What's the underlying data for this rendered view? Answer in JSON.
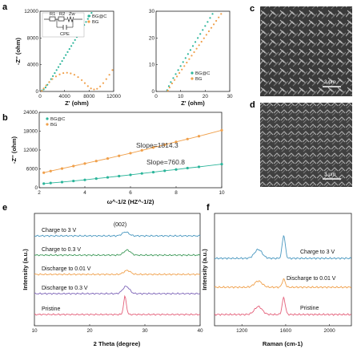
{
  "panels": {
    "a": "a",
    "b": "b",
    "c": "c",
    "d": "d",
    "e": "e",
    "f": "f"
  },
  "colors": {
    "orange": "#f0a04b",
    "teal": "#2bb59a",
    "blue": "#4a98c0",
    "green": "#3f9a5a",
    "purple": "#7e65b8",
    "pink": "#e4607a",
    "sem_bg": "#3a3a3a"
  },
  "sem": {
    "c_scale": "3 μm",
    "d_scale": "3 μm"
  },
  "chart_data": [
    {
      "id": "a-left",
      "type": "scatter",
      "xlabel": "Z' (ohm)",
      "ylabel": "-Z'' (ohm)",
      "xlim": [
        0,
        12000
      ],
      "ylim": [
        0,
        12000
      ],
      "xticks": [
        "0",
        "4000",
        "8000",
        "12000"
      ],
      "yticks": [
        "0",
        "4000",
        "8000",
        "12000"
      ],
      "circuit": {
        "r1": "R1",
        "r2": "R2",
        "zw": "Zw",
        "cpe": "CPE"
      },
      "series": [
        {
          "name": "BG@C",
          "color": "#2bb59a",
          "points": [
            [
              300,
              150
            ],
            [
              600,
              300
            ],
            [
              900,
              600
            ],
            [
              1200,
              1000
            ],
            [
              1500,
              1400
            ],
            [
              1800,
              1850
            ],
            [
              2100,
              2300
            ],
            [
              2400,
              2750
            ],
            [
              2700,
              3200
            ],
            [
              3000,
              3650
            ],
            [
              3300,
              4100
            ],
            [
              3600,
              4550
            ],
            [
              3900,
              5000
            ],
            [
              4200,
              5450
            ],
            [
              4500,
              5900
            ],
            [
              4800,
              6350
            ],
            [
              5100,
              6800
            ],
            [
              5400,
              7250
            ],
            [
              5700,
              7700
            ],
            [
              6000,
              8150
            ],
            [
              6300,
              8600
            ],
            [
              6600,
              9050
            ],
            [
              6900,
              9500
            ],
            [
              7200,
              9950
            ],
            [
              7500,
              10400
            ],
            [
              7800,
              10850
            ],
            [
              8100,
              11300
            ],
            [
              8400,
              11750
            ]
          ]
        },
        {
          "name": "BG",
          "color": "#f0a04b",
          "points": [
            [
              300,
              100
            ],
            [
              600,
              450
            ],
            [
              1000,
              900
            ],
            [
              1500,
              1400
            ],
            [
              2000,
              1850
            ],
            [
              2600,
              2250
            ],
            [
              3200,
              2550
            ],
            [
              3800,
              2750
            ],
            [
              4400,
              2800
            ],
            [
              5000,
              2700
            ],
            [
              5600,
              2500
            ],
            [
              6200,
              2150
            ],
            [
              6800,
              1700
            ],
            [
              7300,
              1250
            ],
            [
              7800,
              800
            ],
            [
              8300,
              450
            ],
            [
              8800,
              300
            ],
            [
              9300,
              400
            ],
            [
              9800,
              750
            ],
            [
              10300,
              1250
            ],
            [
              10800,
              1850
            ],
            [
              11300,
              2500
            ],
            [
              11800,
              3200
            ],
            [
              12200,
              3900
            ]
          ]
        }
      ]
    },
    {
      "id": "a-right",
      "type": "scatter",
      "xlim": [
        0,
        30
      ],
      "ylim": [
        0,
        30
      ],
      "xlabel": "Z' (ohm)",
      "xticks": [
        "0",
        "10",
        "20",
        "30"
      ],
      "yticks": [
        "0",
        "10",
        "20",
        "30"
      ],
      "series": [
        {
          "name": "BG@C",
          "color": "#2bb59a",
          "points": [
            [
              4.5,
              0.5
            ],
            [
              5.2,
              2.0
            ],
            [
              6.0,
              3.5
            ],
            [
              7.0,
              5.0
            ],
            [
              8.0,
              6.5
            ],
            [
              9.0,
              8.0
            ],
            [
              10.0,
              9.5
            ],
            [
              11.0,
              11.0
            ],
            [
              12.0,
              12.5
            ],
            [
              13.0,
              14.0
            ],
            [
              14.0,
              15.5
            ],
            [
              15.0,
              17.0
            ],
            [
              16.0,
              18.5
            ],
            [
              17.0,
              20.0
            ],
            [
              18.0,
              21.5
            ],
            [
              19.0,
              23.0
            ],
            [
              20.0,
              24.5
            ],
            [
              21.0,
              26.0
            ],
            [
              22.0,
              27.5
            ],
            [
              23.0,
              29.0
            ],
            [
              24.0,
              30.5
            ]
          ]
        },
        {
          "name": "BG",
          "color": "#f0a04b",
          "points": [
            [
              4.8,
              0.3
            ],
            [
              5.5,
              1.5
            ],
            [
              6.5,
              3.0
            ],
            [
              7.5,
              4.3
            ],
            [
              8.5,
              5.6
            ],
            [
              9.5,
              6.9
            ],
            [
              10.5,
              8.2
            ],
            [
              11.5,
              9.5
            ],
            [
              12.5,
              10.8
            ],
            [
              13.5,
              12.1
            ],
            [
              14.5,
              13.4
            ],
            [
              15.5,
              14.7
            ],
            [
              16.5,
              16.0
            ],
            [
              17.5,
              17.3
            ],
            [
              18.5,
              18.6
            ],
            [
              19.5,
              19.9
            ],
            [
              20.5,
              21.2
            ],
            [
              21.5,
              22.5
            ],
            [
              22.5,
              23.8
            ],
            [
              23.5,
              25.1
            ],
            [
              24.5,
              26.4
            ],
            [
              25.5,
              27.7
            ],
            [
              26.5,
              29.0
            ]
          ]
        }
      ]
    },
    {
      "id": "b",
      "type": "line",
      "xlabel": "ω^-1/2 (HZ^-1/2)",
      "ylabel": "-Z'' (ohm)",
      "xlim": [
        2,
        10
      ],
      "ylim": [
        0,
        24000
      ],
      "xticks": [
        "2",
        "4",
        "6",
        "8",
        "10"
      ],
      "yticks": [
        "0",
        "6000",
        "12000",
        "18000",
        "24000"
      ],
      "annotations": [
        "Slope=1814.3",
        "Slope=760.8"
      ],
      "series": [
        {
          "name": "BG@C",
          "color": "#2bb59a",
          "points": [
            [
              2.2,
              1300
            ],
            [
              2.5,
              1500
            ],
            [
              3.0,
              1800
            ],
            [
              3.5,
              2150
            ],
            [
              4.0,
              2500
            ],
            [
              4.5,
              2900
            ],
            [
              5.0,
              3300
            ],
            [
              5.5,
              3700
            ],
            [
              6.0,
              4100
            ],
            [
              6.5,
              4550
            ],
            [
              7.0,
              4950
            ],
            [
              7.5,
              5400
            ],
            [
              8.0,
              5800
            ],
            [
              8.5,
              6250
            ],
            [
              9.0,
              6650
            ],
            [
              10.0,
              7500
            ]
          ]
        },
        {
          "name": "BG",
          "color": "#f0a04b",
          "points": [
            [
              2.2,
              4800
            ],
            [
              2.5,
              5300
            ],
            [
              3.0,
              6100
            ],
            [
              3.5,
              6900
            ],
            [
              4.0,
              7700
            ],
            [
              4.5,
              8500
            ],
            [
              5.0,
              9300
            ],
            [
              5.5,
              10150
            ],
            [
              6.0,
              11000
            ],
            [
              6.5,
              11900
            ],
            [
              7.0,
              12800
            ],
            [
              7.5,
              13700
            ],
            [
              8.0,
              14600
            ],
            [
              8.5,
              15500
            ],
            [
              9.0,
              16400
            ],
            [
              10.0,
              18300
            ]
          ]
        }
      ]
    },
    {
      "id": "e",
      "type": "line",
      "xlabel": "2 Theta (degree)",
      "ylabel": "Intensity (a.u.)",
      "xlim": [
        10,
        40
      ],
      "xticks": [
        "10",
        "20",
        "30",
        "40"
      ],
      "annotations": [
        "(002)"
      ],
      "series": [
        {
          "name": "Charge to 3 V",
          "color": "#4a98c0",
          "peak": 26.5,
          "height": 0.35
        },
        {
          "name": "Charge to 0.3 V",
          "color": "#3f9a5a",
          "peak": 26.8,
          "height": 0.45
        },
        {
          "name": "Discharge to 0.01 V",
          "color": "#f0a04b",
          "peak": 26.8,
          "height": 0.35
        },
        {
          "name": "Discharge to 0.3 V",
          "color": "#7e65b8",
          "peak": 26.6,
          "height": 0.65
        },
        {
          "name": "Pristine",
          "color": "#e4607a",
          "peak": 26.4,
          "height": 1.6
        }
      ]
    },
    {
      "id": "f",
      "type": "line",
      "xlabel": "Raman (cm-1)",
      "ylabel": "Intensity (a.u.)",
      "xlim": [
        950,
        2200
      ],
      "xticks": [
        "1200",
        "1600",
        "2000"
      ],
      "series": [
        {
          "name": "Charge to 3 V",
          "color": "#4a98c0",
          "d_peak": 1350,
          "g_peak": 1582,
          "d_h": 0.5,
          "g_h": 1.3
        },
        {
          "name": "Discharge to 0.01 V",
          "color": "#f0a04b",
          "d_peak": 1350,
          "g_peak": 1582,
          "d_h": 0.35,
          "g_h": 0.45
        },
        {
          "name": "Pristine",
          "color": "#e4607a",
          "d_peak": 1350,
          "g_peak": 1582,
          "d_h": 0.45,
          "g_h": 0.95
        }
      ]
    }
  ]
}
